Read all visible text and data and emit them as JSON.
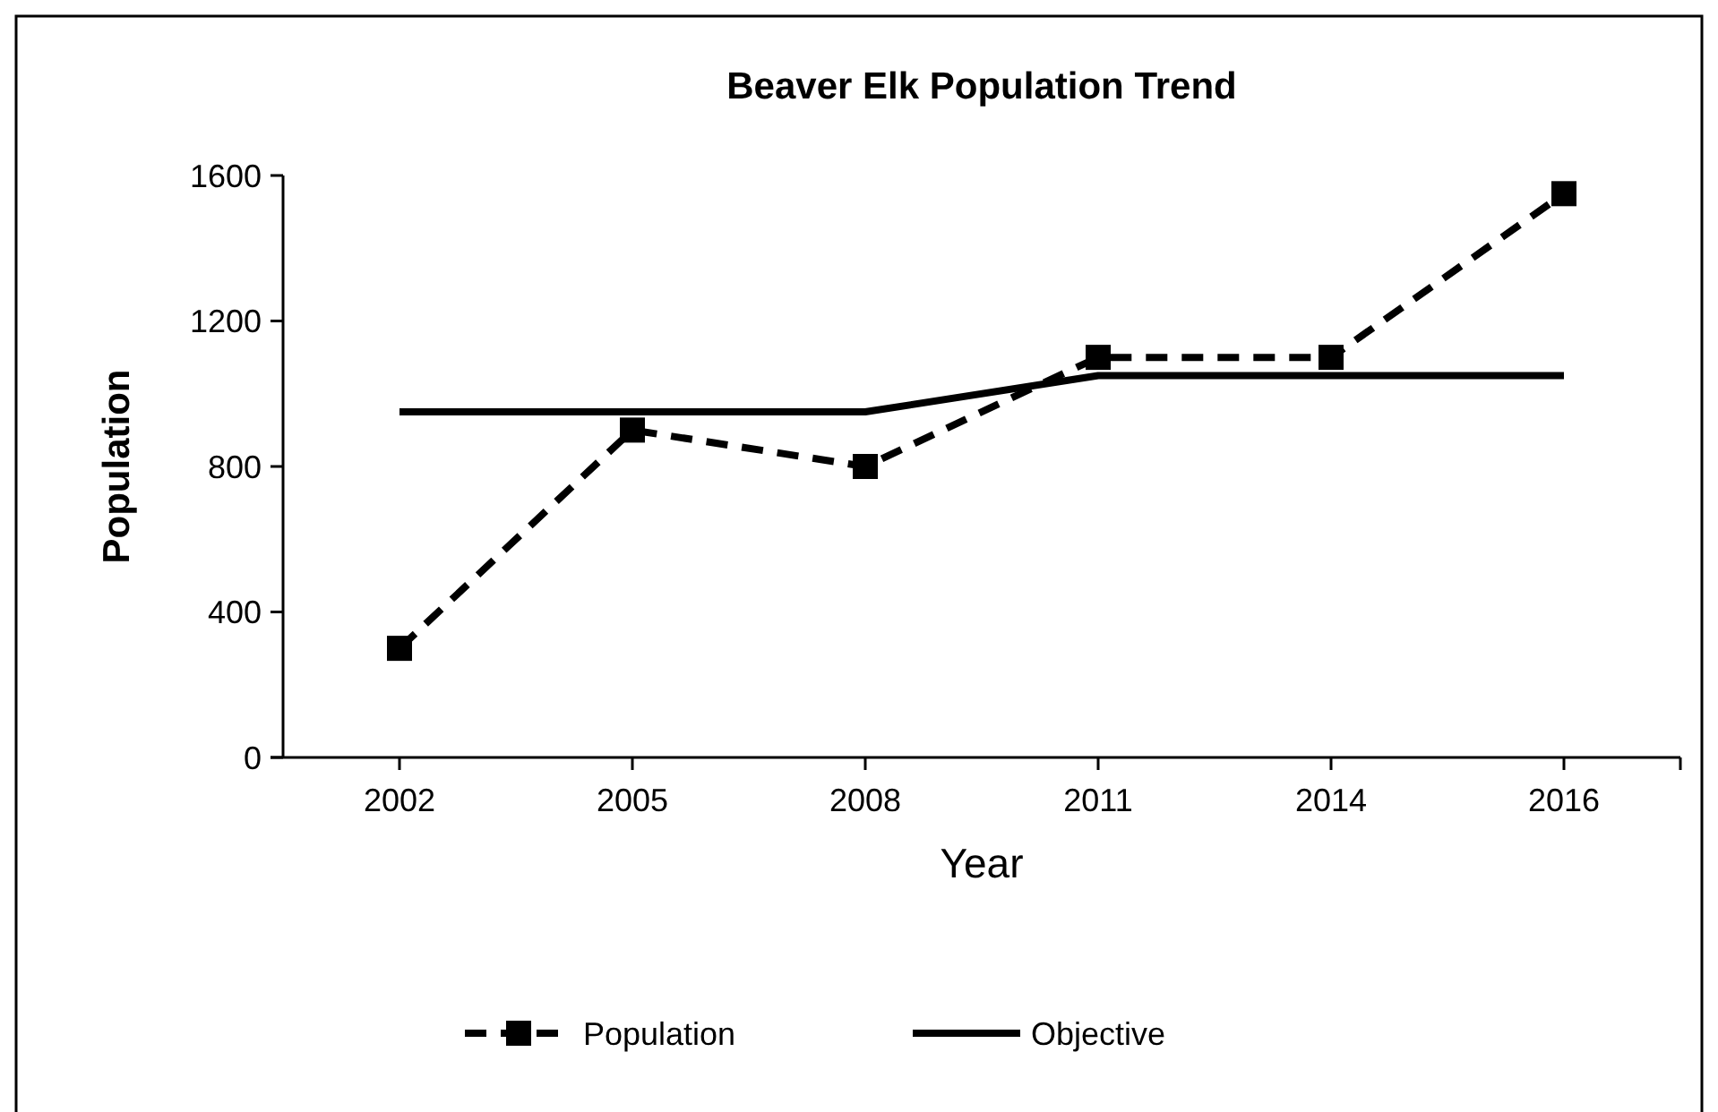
{
  "chart_data": {
    "type": "line",
    "title": "Beaver Elk Population Trend",
    "xlabel": "Year",
    "ylabel": "Population",
    "categories": [
      "2002",
      "2005",
      "2008",
      "2011",
      "2014",
      "2016"
    ],
    "series": [
      {
        "name": "Population",
        "color": "#000000",
        "values": [
          300,
          900,
          800,
          1100,
          1100,
          1550
        ],
        "line_style": "dashed",
        "marker": "square"
      },
      {
        "name": "Objective",
        "color": "#000000",
        "values": [
          950,
          950,
          950,
          1050,
          1050,
          1050
        ],
        "line_style": "solid",
        "marker": "none"
      }
    ],
    "ylim": [
      0,
      1600
    ],
    "yticks": [
      0,
      400,
      800,
      1200,
      1600
    ],
    "grid": false,
    "legend": "bottom"
  }
}
